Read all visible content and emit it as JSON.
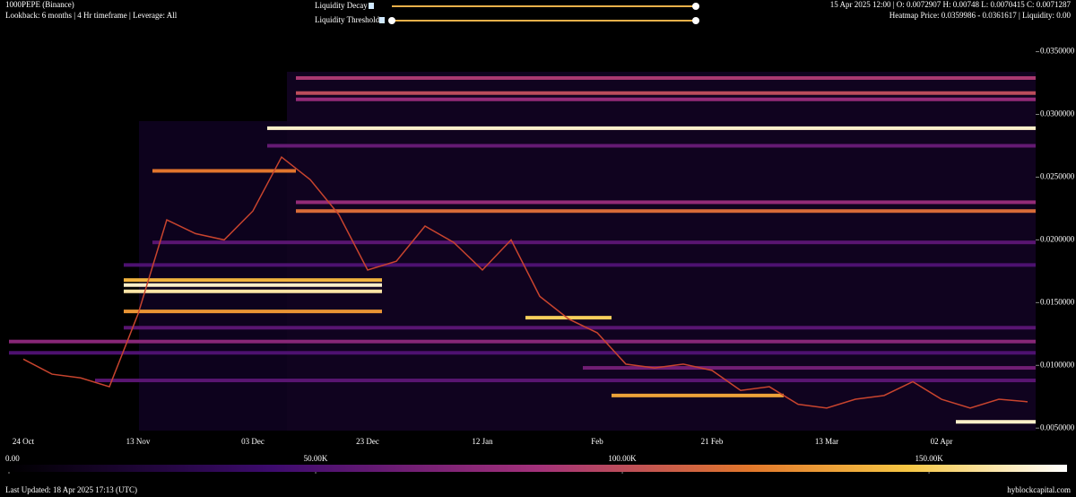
{
  "header": {
    "symbol": "1000PEPE (Binance)",
    "settings": "Lookback: 6 months | 4 Hr timeframe | Leverage: All",
    "slider_1": "Liquidity Decay",
    "slider_2": "Liquidity Threshold",
    "ohlc": "15 Apr 2025 12:00 | O: 0.0072907 H: 0.00748 L: 0.0070415 C: 0.0071287",
    "heatmap_info": "Heatmap Price: 0.0359986 - 0.0361617 | Liquidity: 0.00"
  },
  "chart_data": {
    "type": "heatmap",
    "categories": [
      "24 Oct",
      null,
      null,
      null,
      "13 Nov",
      null,
      null,
      null,
      "03 Dec",
      null,
      null,
      null,
      "23 Dec",
      null,
      null,
      null,
      "12 Jan",
      null,
      null,
      null,
      "Feb",
      null,
      null,
      null,
      "21 Feb",
      null,
      null,
      null,
      "13 Mar",
      null,
      null,
      null,
      "02 Apr",
      null,
      null,
      null
    ],
    "series": [
      {
        "name": "1000PEPE",
        "color": "#c8442e",
        "values": [
          0.0105,
          0.0093,
          0.009,
          0.0083,
          0.0141,
          0.0216,
          0.0205,
          0.02,
          0.0223,
          0.0266,
          0.0248,
          0.022,
          0.0176,
          0.0183,
          0.0211,
          0.0198,
          0.0176,
          0.02,
          0.0155,
          0.0137,
          0.0126,
          0.0101,
          0.0098,
          0.0101,
          0.0096,
          0.008,
          0.0083,
          0.0069,
          0.0066,
          0.0073,
          0.0076,
          0.0087,
          0.0073,
          0.0066,
          0.0073,
          0.0071
        ]
      }
    ],
    "bands": [
      {
        "price": 0.0329,
        "liquidity": 90000,
        "from": 10,
        "to": 35
      },
      {
        "price": 0.0317,
        "liquidity": 100000,
        "from": 10,
        "to": 35
      },
      {
        "price": 0.0312,
        "liquidity": 80000,
        "from": 10,
        "to": 35
      },
      {
        "price": 0.0289,
        "liquidity": 165000,
        "from": 9,
        "to": 35
      },
      {
        "price": 0.0275,
        "liquidity": 60000,
        "from": 9,
        "to": 35
      },
      {
        "price": 0.0255,
        "liquidity": 120000,
        "from": 5,
        "to": 9
      },
      {
        "price": 0.023,
        "liquidity": 80000,
        "from": 10,
        "to": 35
      },
      {
        "price": 0.0223,
        "liquidity": 115000,
        "from": 10,
        "to": 35
      },
      {
        "price": 0.0198,
        "liquidity": 55000,
        "from": 5,
        "to": 35
      },
      {
        "price": 0.018,
        "liquidity": 50000,
        "from": 4,
        "to": 35
      },
      {
        "price": 0.0168,
        "liquidity": 140000,
        "from": 4,
        "to": 12
      },
      {
        "price": 0.0164,
        "liquidity": 165000,
        "from": 4,
        "to": 12
      },
      {
        "price": 0.0159,
        "liquidity": 160000,
        "from": 4,
        "to": 12
      },
      {
        "price": 0.0143,
        "liquidity": 130000,
        "from": 4,
        "to": 12
      },
      {
        "price": 0.0138,
        "liquidity": 150000,
        "from": 18,
        "to": 20
      },
      {
        "price": 0.013,
        "liquidity": 55000,
        "from": 4,
        "to": 35
      },
      {
        "price": 0.0119,
        "liquidity": 75000,
        "from": 0,
        "to": 35
      },
      {
        "price": 0.011,
        "liquidity": 50000,
        "from": 0,
        "to": 35
      },
      {
        "price": 0.0098,
        "liquidity": 65000,
        "from": 20,
        "to": 35
      },
      {
        "price": 0.0088,
        "liquidity": 55000,
        "from": 3,
        "to": 35
      },
      {
        "price": 0.0076,
        "liquidity": 135000,
        "from": 21,
        "to": 26
      },
      {
        "price": 0.0055,
        "liquidity": 165000,
        "from": 33,
        "to": 35
      }
    ],
    "ylim": [
      0.0043,
      0.0359
    ],
    "yticks": [
      {
        "value": 0.005,
        "label": "0.0050000"
      },
      {
        "value": 0.01,
        "label": "0.0100000"
      },
      {
        "value": 0.015,
        "label": "0.0150000"
      },
      {
        "value": 0.02,
        "label": "0.0200000"
      },
      {
        "value": 0.025,
        "label": "0.0250000"
      },
      {
        "value": 0.03,
        "label": "0.0300000"
      },
      {
        "value": 0.035,
        "label": "0.0350000"
      }
    ],
    "colormap": [
      [
        0,
        "#000000"
      ],
      [
        0.25,
        "#3d0b6e"
      ],
      [
        0.5,
        "#a3317a"
      ],
      [
        0.7,
        "#e2772b"
      ],
      [
        0.85,
        "#f6c744"
      ],
      [
        1,
        "#ffffff"
      ]
    ],
    "colorbar": {
      "lim": [
        0,
        172500
      ],
      "ticks": [
        {
          "value": 0,
          "label": "0.00"
        },
        {
          "value": 50000,
          "label": "50.00K"
        },
        {
          "value": 100000,
          "label": "100.00K"
        },
        {
          "value": 150000,
          "label": "150.00K"
        }
      ]
    }
  },
  "footer": {
    "updated": "Last Updated: 18 Apr 2025 17:13 (UTC)",
    "site": "hyblockcapital.com"
  }
}
